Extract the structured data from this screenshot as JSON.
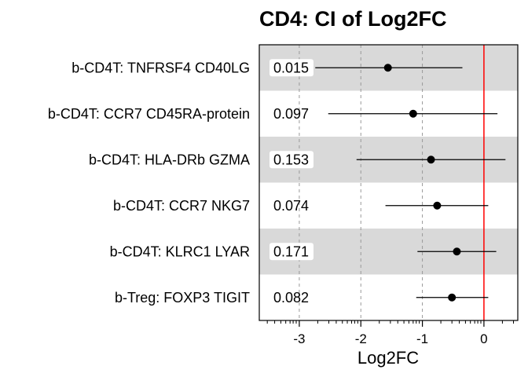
{
  "chart_data": {
    "type": "scatter",
    "title": "CD4: CI of Log2FC",
    "xlabel": "Log2FC",
    "ylabel": "",
    "xlim": [
      -3.65,
      0.55
    ],
    "x_ticks": [
      -3,
      -2,
      -1,
      0
    ],
    "x_tick_labels": [
      "-3",
      "-2",
      "-1",
      "0"
    ],
    "reference_line": 0,
    "reference_color": "#ff0000",
    "grid": "dashed vertical",
    "band_color": "#d9d9d9",
    "rows": [
      {
        "label": "b-CD4T: TNFRSF4 CD40LG",
        "p": "0.015",
        "estimate": -1.56,
        "lower": -2.74,
        "upper": -0.35,
        "band": true
      },
      {
        "label": "b-CD4T: CCR7 CD45RA-protein",
        "p": "0.097",
        "estimate": -1.15,
        "lower": -2.53,
        "upper": 0.22,
        "band": false
      },
      {
        "label": "b-CD4T: HLA-DRb GZMA",
        "p": "0.153",
        "estimate": -0.86,
        "lower": -2.07,
        "upper": 0.35,
        "band": true
      },
      {
        "label": "b-CD4T: CCR7 NKG7",
        "p": "0.074",
        "estimate": -0.76,
        "lower": -1.6,
        "upper": 0.07,
        "band": false
      },
      {
        "label": "b-CD4T: KLRC1 LYAR",
        "p": "0.171",
        "estimate": -0.44,
        "lower": -1.08,
        "upper": 0.2,
        "band": true
      },
      {
        "label": "b-Treg: FOXP3 TIGIT",
        "p": "0.082",
        "estimate": -0.52,
        "lower": -1.1,
        "upper": 0.07,
        "band": false
      }
    ]
  }
}
